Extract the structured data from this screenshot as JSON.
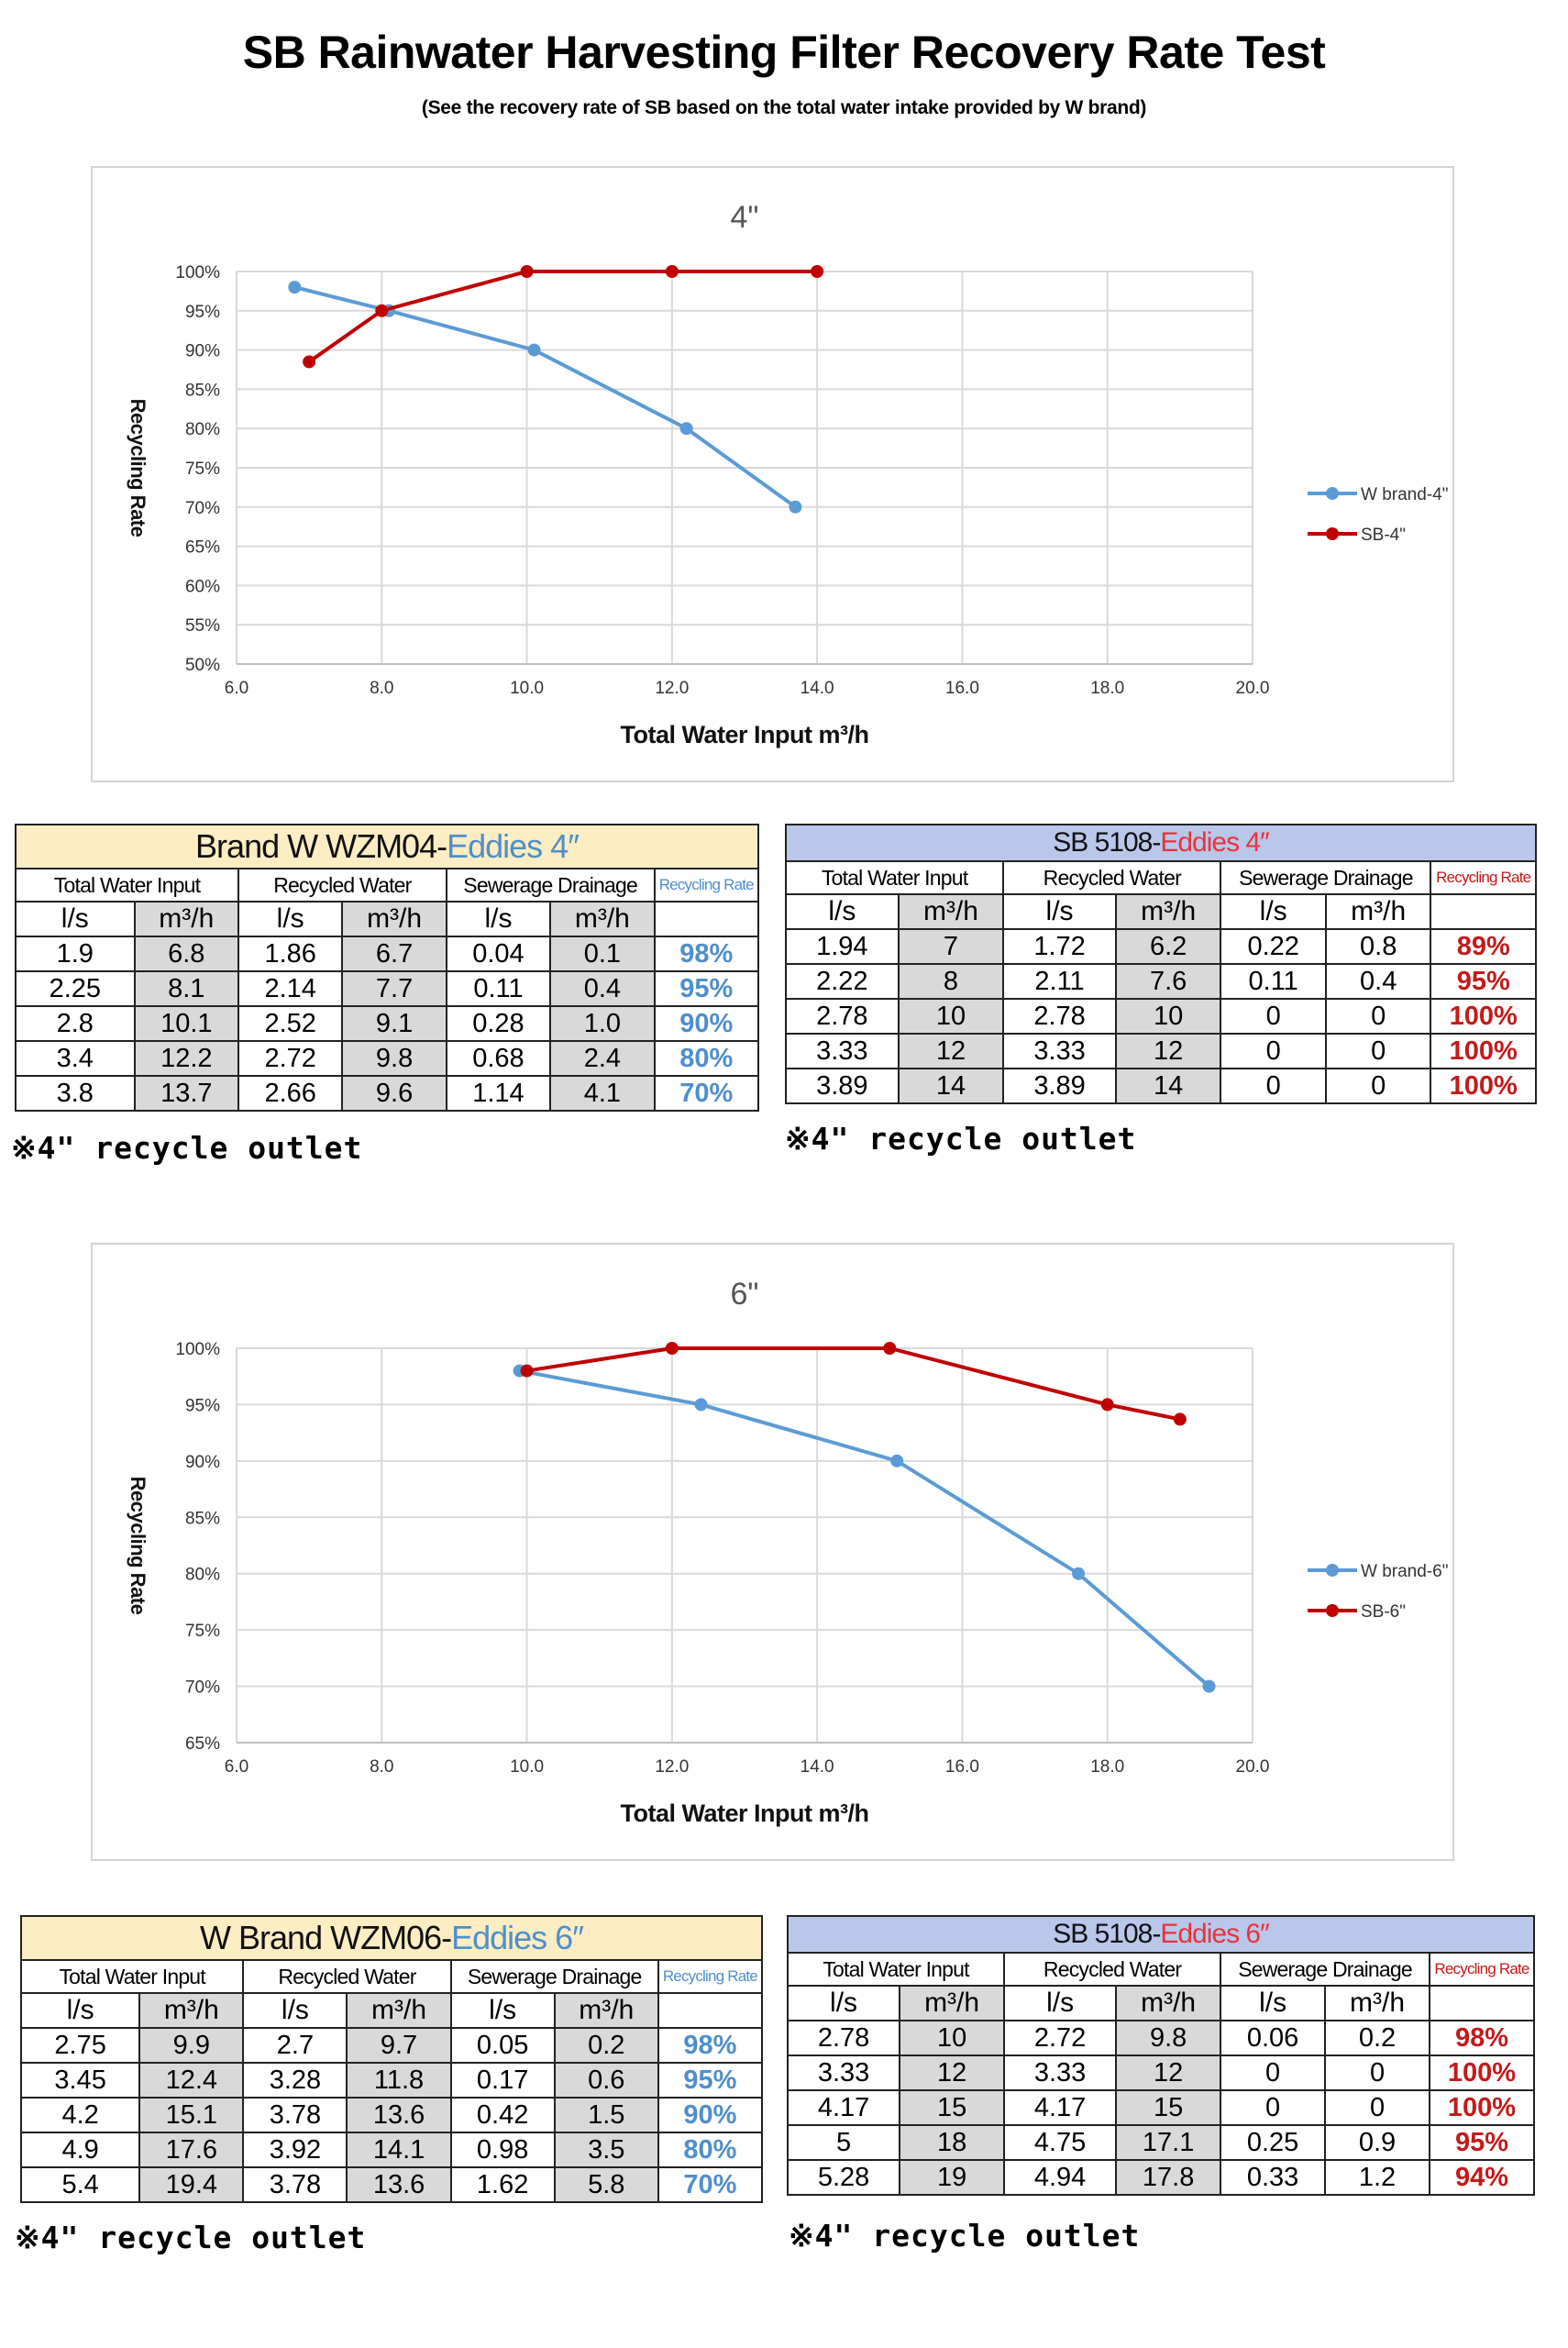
{
  "page": {
    "title": "SB Rainwater Harvesting Filter Recovery Rate Test",
    "subtitle": "(See the recovery rate of SB based on the total water intake provided by W brand)"
  },
  "chart_data": [
    {
      "type": "line",
      "title": "4\"",
      "xlabel": "Total Water Input  m³/h",
      "ylabel": "Recycling Rate",
      "xlim": [
        6,
        20
      ],
      "ylim": [
        50,
        100
      ],
      "xticks": [
        "6.0",
        "8.0",
        "10.0",
        "12.0",
        "14.0",
        "16.0",
        "18.0",
        "20.0"
      ],
      "yticks": [
        "50%",
        "55%",
        "60%",
        "65%",
        "70%",
        "75%",
        "80%",
        "85%",
        "90%",
        "95%",
        "100%"
      ],
      "grid": true,
      "legend_position": "right",
      "series": [
        {
          "name": "W brand-4\"",
          "color": "#5b9bd5",
          "points": [
            [
              6.8,
              98
            ],
            [
              8.1,
              95
            ],
            [
              10.1,
              90
            ],
            [
              12.2,
              80
            ],
            [
              13.7,
              70
            ]
          ]
        },
        {
          "name": "SB-4\"",
          "color": "#c00000",
          "points": [
            [
              7,
              88.5
            ],
            [
              8,
              95
            ],
            [
              10,
              100
            ],
            [
              12,
              100
            ],
            [
              14,
              100
            ]
          ]
        }
      ]
    },
    {
      "type": "line",
      "title": "6\"",
      "xlabel": "Total Water Input  m³/h",
      "ylabel": "Recycling Rate",
      "xlim": [
        6,
        20
      ],
      "ylim": [
        65,
        100
      ],
      "xticks": [
        "6.0",
        "8.0",
        "10.0",
        "12.0",
        "14.0",
        "16.0",
        "18.0",
        "20.0"
      ],
      "yticks": [
        "65%",
        "70%",
        "75%",
        "80%",
        "85%",
        "90%",
        "95%",
        "100%"
      ],
      "grid": true,
      "legend_position": "right",
      "series": [
        {
          "name": "W brand-6\"",
          "color": "#5b9bd5",
          "points": [
            [
              9.9,
              98
            ],
            [
              12.4,
              95
            ],
            [
              15.1,
              90
            ],
            [
              17.6,
              80
            ],
            [
              19.4,
              70
            ]
          ]
        },
        {
          "name": "SB-6\"",
          "color": "#c00000",
          "points": [
            [
              10,
              98
            ],
            [
              12,
              100
            ],
            [
              15,
              100
            ],
            [
              18,
              95
            ],
            [
              19,
              93.7
            ]
          ]
        }
      ]
    }
  ],
  "tables": {
    "w4": {
      "title_brand": "Brand W  WZM04-",
      "title_eddies": "Eddies 4″",
      "headers": [
        "Total Water Input",
        "Recycled Water",
        "Sewerage Drainage",
        "Recycling Rate"
      ],
      "units": [
        "l/s",
        "m³/h",
        "l/s",
        "m³/h",
        "l/s",
        "m³/h"
      ],
      "rows": [
        [
          "1.9",
          "6.8",
          "1.86",
          "6.7",
          "0.04",
          "0.1",
          "98%"
        ],
        [
          "2.25",
          "8.1",
          "2.14",
          "7.7",
          "0.11",
          "0.4",
          "95%"
        ],
        [
          "2.8",
          "10.1",
          "2.52",
          "9.1",
          "0.28",
          "1.0",
          "90%"
        ],
        [
          "3.4",
          "12.2",
          "2.72",
          "9.8",
          "0.68",
          "2.4",
          "80%"
        ],
        [
          "3.8",
          "13.7",
          "2.66",
          "9.6",
          "1.14",
          "4.1",
          "70%"
        ]
      ]
    },
    "sb4": {
      "title_brand": "SB 5108-",
      "title_eddies": "Eddies 4″",
      "headers": [
        "Total Water Input",
        "Recycled Water",
        "Sewerage Drainage",
        "Recycling Rate"
      ],
      "units": [
        "l/s",
        "m³/h",
        "l/s",
        "m³/h",
        "l/s",
        "m³/h"
      ],
      "rows": [
        [
          "1.94",
          "7",
          "1.72",
          "6.2",
          "0.22",
          "0.8",
          "89%"
        ],
        [
          "2.22",
          "8",
          "2.11",
          "7.6",
          "0.11",
          "0.4",
          "95%"
        ],
        [
          "2.78",
          "10",
          "2.78",
          "10",
          "0",
          "0",
          "100%"
        ],
        [
          "3.33",
          "12",
          "3.33",
          "12",
          "0",
          "0",
          "100%"
        ],
        [
          "3.89",
          "14",
          "3.89",
          "14",
          "0",
          "0",
          "100%"
        ]
      ]
    },
    "w6": {
      "title_brand": "W Brand  WZM06-",
      "title_eddies": "Eddies 6″",
      "headers": [
        "Total Water Input",
        "Recycled Water",
        "Sewerage Drainage",
        "Recycling Rate"
      ],
      "units": [
        "l/s",
        "m³/h",
        "l/s",
        "m³/h",
        "l/s",
        "m³/h"
      ],
      "rows": [
        [
          "2.75",
          "9.9",
          "2.7",
          "9.7",
          "0.05",
          "0.2",
          "98%"
        ],
        [
          "3.45",
          "12.4",
          "3.28",
          "11.8",
          "0.17",
          "0.6",
          "95%"
        ],
        [
          "4.2",
          "15.1",
          "3.78",
          "13.6",
          "0.42",
          "1.5",
          "90%"
        ],
        [
          "4.9",
          "17.6",
          "3.92",
          "14.1",
          "0.98",
          "3.5",
          "80%"
        ],
        [
          "5.4",
          "19.4",
          "3.78",
          "13.6",
          "1.62",
          "5.8",
          "70%"
        ]
      ]
    },
    "sb6": {
      "title_brand": "SB 5108-",
      "title_eddies": "Eddies 6″",
      "headers": [
        "Total Water Input",
        "Recycled Water",
        "Sewerage Drainage",
        "Recycling Rate"
      ],
      "units": [
        "l/s",
        "m³/h",
        "l/s",
        "m³/h",
        "l/s",
        "m³/h"
      ],
      "rows": [
        [
          "2.78",
          "10",
          "2.72",
          "9.8",
          "0.06",
          "0.2",
          "98%"
        ],
        [
          "3.33",
          "12",
          "3.33",
          "12",
          "0",
          "0",
          "100%"
        ],
        [
          "4.17",
          "15",
          "4.17",
          "15",
          "0",
          "0",
          "100%"
        ],
        [
          "5",
          "18",
          "4.75",
          "17.1",
          "0.25",
          "0.9",
          "95%"
        ],
        [
          "5.28",
          "19",
          "4.94",
          "17.8",
          "0.33",
          "1.2",
          "94%"
        ]
      ]
    }
  },
  "notes": {
    "recycle_outlet": "※4\" recycle outlet"
  }
}
